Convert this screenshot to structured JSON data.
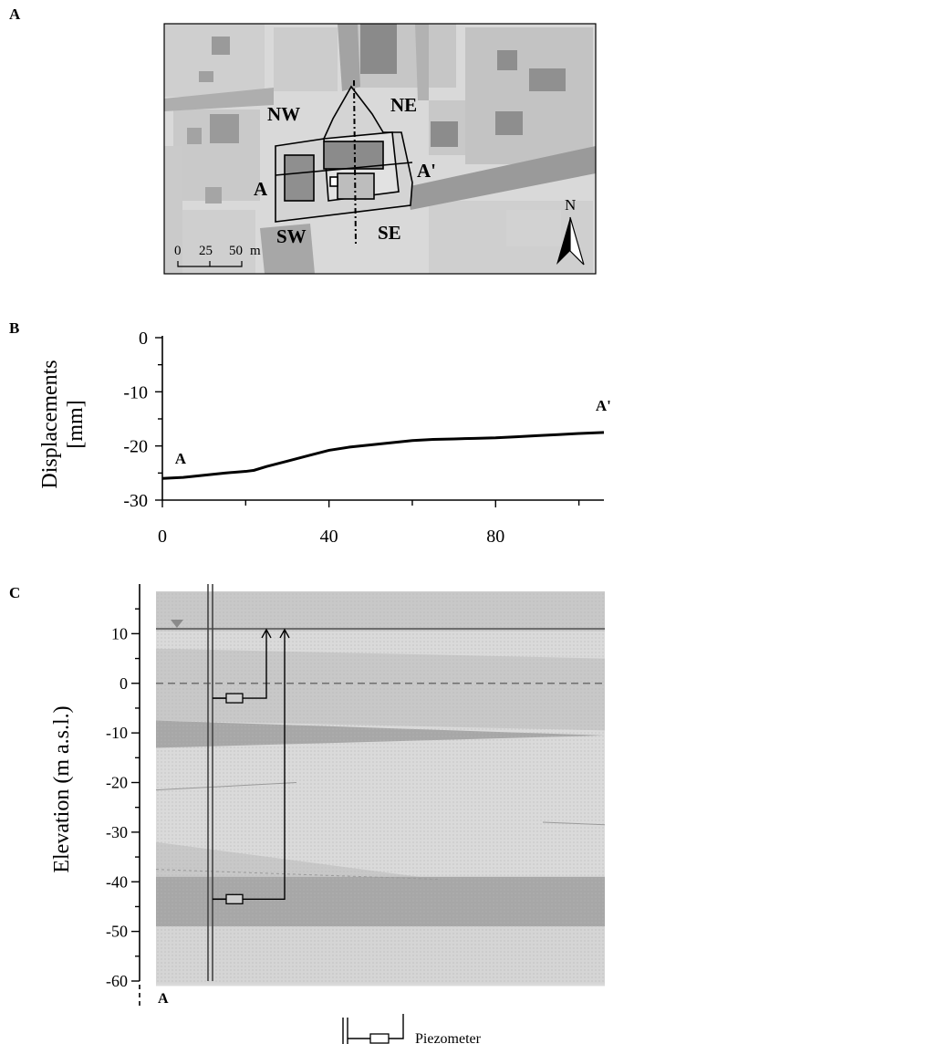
{
  "panels": {
    "a": {
      "letter": "A"
    },
    "b": {
      "letter": "B"
    },
    "c": {
      "letter": "C"
    }
  },
  "map": {
    "labels": {
      "nw": "NW",
      "ne": "NE",
      "sw": "SW",
      "se": "SE",
      "a": "A",
      "a_prime": "A'"
    },
    "north": "N",
    "scale": {
      "ticks": [
        "0",
        "25",
        "50"
      ],
      "unit": "m"
    },
    "colors": {
      "background": "#d9d9d9",
      "building": "#c4c4c4",
      "dark_block": "#8a8a8a",
      "street": "#9a9a9a"
    }
  },
  "chart_data": [
    {
      "type": "line",
      "ylabel": "Displacements\n[mm]",
      "ylabel_lines": [
        "Displacements",
        "[mm]"
      ],
      "xlim": [
        0,
        106
      ],
      "ylim": [
        -30,
        0
      ],
      "xticks": [
        0,
        40,
        80
      ],
      "yticks": [
        0,
        -10,
        -20,
        -30
      ],
      "annotations": {
        "start": "A",
        "end": "A'"
      },
      "series": [
        {
          "x": [
            0,
            5,
            10,
            15,
            20,
            22,
            25,
            30,
            35,
            40,
            45,
            50,
            55,
            60,
            65,
            70,
            75,
            80,
            85,
            90,
            95,
            100,
            106
          ],
          "y": [
            -26.0,
            -25.8,
            -25.4,
            -25.0,
            -24.7,
            -24.5,
            -23.8,
            -22.8,
            -21.8,
            -20.8,
            -20.2,
            -19.8,
            -19.4,
            -19.0,
            -18.8,
            -18.7,
            -18.6,
            -18.5,
            -18.3,
            -18.1,
            -17.9,
            -17.7,
            -17.5
          ]
        }
      ]
    },
    {
      "type": "other",
      "ylabel": "Elevation (m a.s.l.)",
      "ylim": [
        -60,
        20
      ],
      "yticks": [
        10,
        0,
        -10,
        -20,
        -30,
        -40,
        -50,
        -60
      ],
      "ytick_labels": [
        "10",
        "0",
        "-10",
        "-20",
        "-30",
        "-40",
        "-50",
        "-60"
      ],
      "water_table": 11,
      "zero_line": 0,
      "piezometers": [
        {
          "tip_elevation": -3,
          "reading": 11
        },
        {
          "tip_elevation": -43.5,
          "reading": 11
        }
      ],
      "start_label": "A",
      "legend": {
        "label": "Piezometer"
      },
      "colors": {
        "light": "#dadada",
        "mid": "#c8c8c8",
        "dark": "#a7a7a7"
      }
    }
  ]
}
